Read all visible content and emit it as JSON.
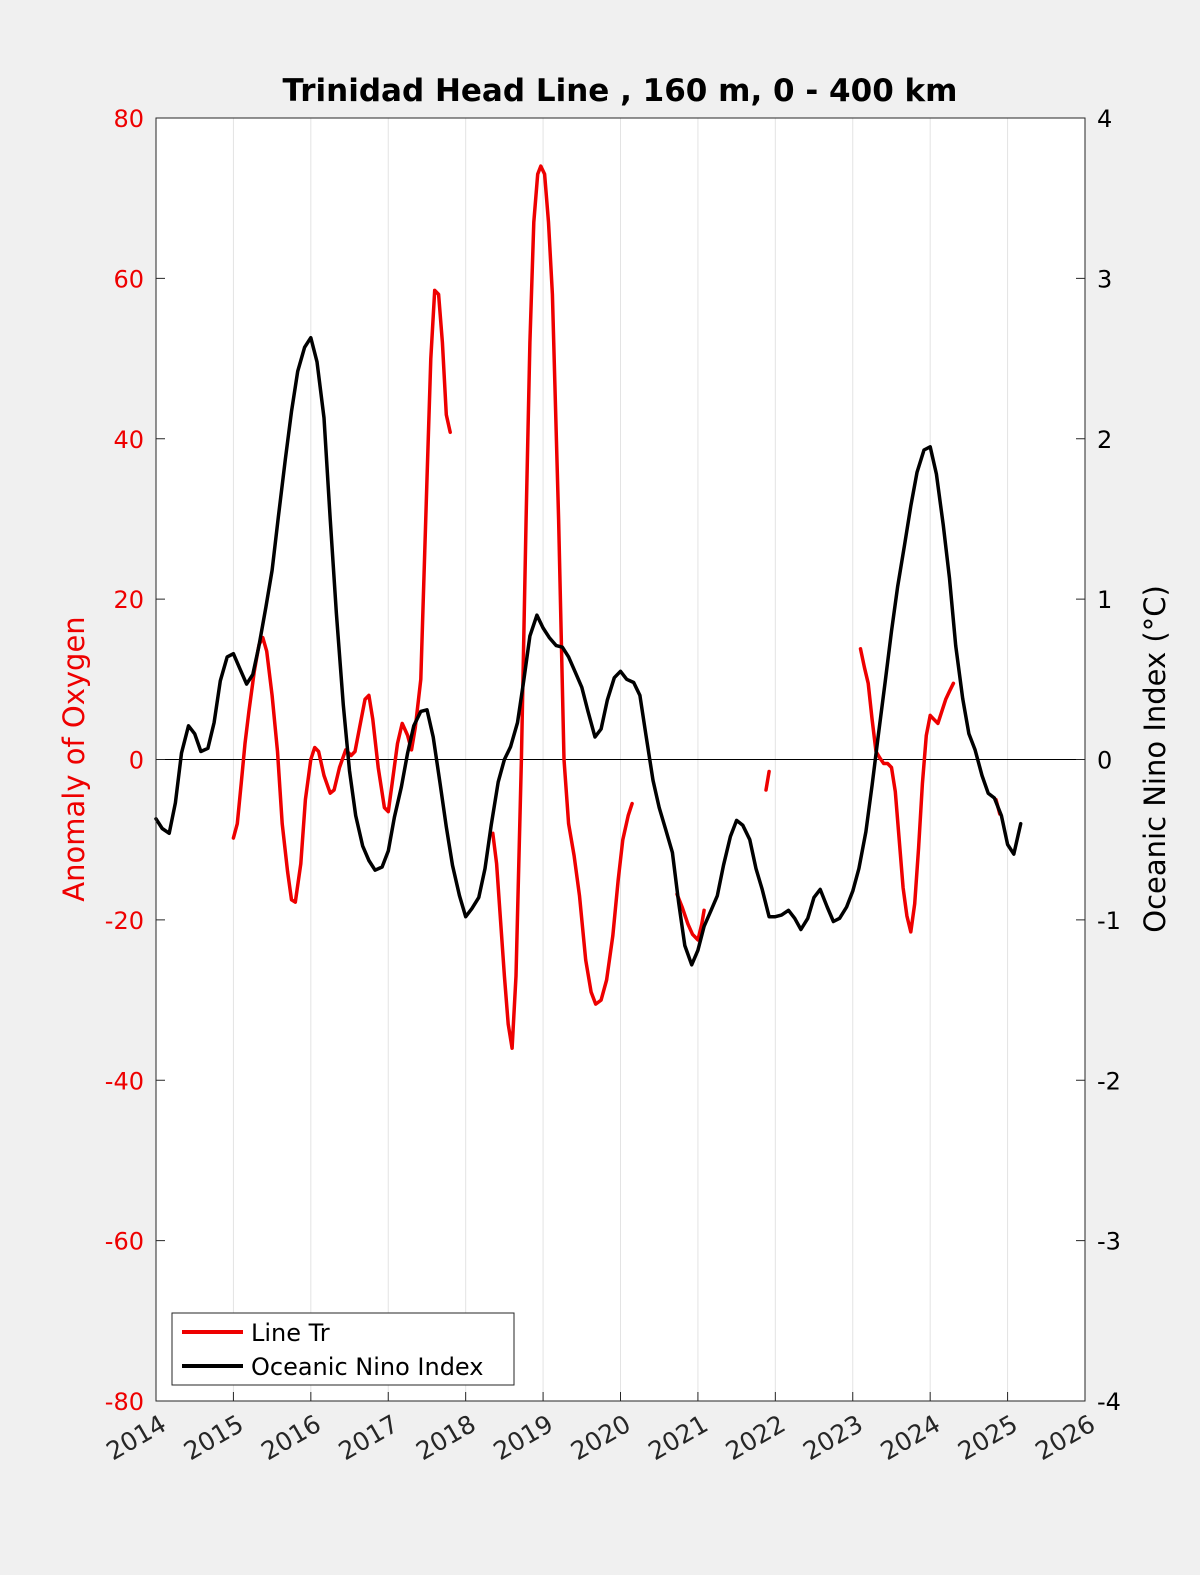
{
  "chart_data": {
    "type": "line",
    "title": "Trinidad Head Line , 160 m, 0 - 400 km",
    "ylabel_left": "Anomaly of Oxygen",
    "ylabel_right": "Oceanic Nino Index (°C)",
    "xlim": [
      2014,
      2026
    ],
    "ylim_left": [
      -80,
      80
    ],
    "ylim_right": [
      -4,
      4
    ],
    "x_ticks": [
      "2014",
      "2015",
      "2016",
      "2017",
      "2018",
      "2019",
      "2020",
      "2021",
      "2022",
      "2023",
      "2024",
      "2025",
      "2026"
    ],
    "y_ticks_left": [
      "80",
      "60",
      "40",
      "20",
      "0",
      "-20",
      "-40",
      "-60",
      "-80"
    ],
    "y_ticks_right": [
      "4",
      "3",
      "2",
      "1",
      "0",
      "-1",
      "-2",
      "-3",
      "-4"
    ],
    "grid": "vertical",
    "zero_line": true,
    "legend_position": "bottom-left",
    "colors": {
      "line_tr": "#ee0000",
      "oni": "#000000",
      "left_axis": "#ee0000"
    },
    "series": [
      {
        "name": "Line Tr",
        "axis": "left",
        "segments": [
          [
            [
              2015.0,
              -9.8
            ],
            [
              2015.05,
              -8
            ],
            [
              2015.1,
              -3
            ],
            [
              2015.15,
              2
            ],
            [
              2015.2,
              6
            ],
            [
              2015.27,
              11
            ],
            [
              2015.33,
              14.3
            ],
            [
              2015.38,
              15.2
            ],
            [
              2015.43,
              13.5
            ],
            [
              2015.5,
              8
            ],
            [
              2015.57,
              1
            ],
            [
              2015.63,
              -8
            ],
            [
              2015.7,
              -14
            ],
            [
              2015.75,
              -17.5
            ],
            [
              2015.8,
              -17.8
            ],
            [
              2015.87,
              -13
            ],
            [
              2015.93,
              -5
            ],
            [
              2016.0,
              0
            ],
            [
              2016.05,
              1.5
            ],
            [
              2016.1,
              1
            ],
            [
              2016.17,
              -2
            ],
            [
              2016.25,
              -4.2
            ],
            [
              2016.3,
              -3.8
            ],
            [
              2016.37,
              -1
            ],
            [
              2016.45,
              1.2
            ],
            [
              2016.52,
              0.5
            ],
            [
              2016.57,
              1
            ],
            [
              2016.63,
              4
            ],
            [
              2016.7,
              7.5
            ],
            [
              2016.75,
              8
            ],
            [
              2016.8,
              5
            ],
            [
              2016.87,
              -1
            ],
            [
              2016.95,
              -6
            ],
            [
              2017.0,
              -6.5
            ],
            [
              2017.05,
              -3
            ],
            [
              2017.12,
              2
            ],
            [
              2017.18,
              4.5
            ],
            [
              2017.25,
              3
            ],
            [
              2017.3,
              1.2
            ],
            [
              2017.35,
              4
            ],
            [
              2017.42,
              10
            ],
            [
              2017.5,
              35
            ],
            [
              2017.55,
              50
            ],
            [
              2017.6,
              58.5
            ],
            [
              2017.65,
              58
            ],
            [
              2017.7,
              52
            ],
            [
              2017.75,
              43
            ],
            [
              2017.8,
              40.8
            ]
          ],
          [
            [
              2018.35,
              -9.2
            ],
            [
              2018.4,
              -13
            ],
            [
              2018.45,
              -20
            ],
            [
              2018.5,
              -27
            ],
            [
              2018.55,
              -33
            ],
            [
              2018.6,
              -36
            ],
            [
              2018.65,
              -27
            ],
            [
              2018.72,
              0
            ],
            [
              2018.78,
              30
            ],
            [
              2018.83,
              52
            ],
            [
              2018.88,
              67
            ],
            [
              2018.93,
              73
            ],
            [
              2018.97,
              74
            ],
            [
              2019.02,
              73
            ],
            [
              2019.07,
              67
            ],
            [
              2019.12,
              58
            ],
            [
              2019.2,
              30
            ],
            [
              2019.27,
              0
            ],
            [
              2019.33,
              -8
            ],
            [
              2019.4,
              -12
            ],
            [
              2019.47,
              -17
            ],
            [
              2019.55,
              -25
            ],
            [
              2019.62,
              -29
            ],
            [
              2019.68,
              -30.5
            ],
            [
              2019.75,
              -30
            ],
            [
              2019.82,
              -27.5
            ],
            [
              2019.9,
              -22
            ],
            [
              2019.97,
              -15
            ],
            [
              2020.03,
              -10
            ],
            [
              2020.1,
              -7
            ],
            [
              2020.15,
              -5.5
            ]
          ],
          [
            [
              2020.73,
              -16.8
            ],
            [
              2020.8,
              -18.5
            ],
            [
              2020.87,
              -20.5
            ],
            [
              2020.93,
              -21.8
            ],
            [
              2021.0,
              -22.5
            ],
            [
              2021.05,
              -20.5
            ],
            [
              2021.08,
              -18.8
            ]
          ],
          [
            [
              2021.88,
              -3.8
            ],
            [
              2021.92,
              -1.5
            ]
          ],
          [
            [
              2023.1,
              13.8
            ],
            [
              2023.15,
              11.5
            ],
            [
              2023.2,
              9.5
            ],
            [
              2023.25,
              5
            ],
            [
              2023.3,
              1
            ],
            [
              2023.35,
              0.2
            ],
            [
              2023.4,
              -0.5
            ],
            [
              2023.45,
              -0.5
            ],
            [
              2023.5,
              -1
            ],
            [
              2023.55,
              -4
            ],
            [
              2023.6,
              -10
            ],
            [
              2023.65,
              -16
            ],
            [
              2023.7,
              -19.5
            ],
            [
              2023.75,
              -21.5
            ],
            [
              2023.8,
              -18
            ],
            [
              2023.85,
              -11
            ],
            [
              2023.9,
              -3
            ],
            [
              2023.95,
              3
            ],
            [
              2024.0,
              5.5
            ],
            [
              2024.05,
              5
            ],
            [
              2024.1,
              4.5
            ],
            [
              2024.15,
              6
            ],
            [
              2024.2,
              7.5
            ],
            [
              2024.25,
              8.5
            ],
            [
              2024.3,
              9.5
            ]
          ],
          [
            [
              2024.85,
              -5
            ],
            [
              2024.9,
              -6.8
            ]
          ]
        ]
      },
      {
        "name": "Oceanic Nino Index",
        "axis": "right",
        "segments": [
          [
            [
              2014.0,
              -0.37
            ],
            [
              2014.08,
              -0.43
            ],
            [
              2014.17,
              -0.46
            ],
            [
              2014.25,
              -0.27
            ],
            [
              2014.33,
              0.04
            ],
            [
              2014.42,
              0.21
            ],
            [
              2014.5,
              0.16
            ],
            [
              2014.58,
              0.05
            ],
            [
              2014.67,
              0.07
            ],
            [
              2014.75,
              0.23
            ],
            [
              2014.83,
              0.49
            ],
            [
              2014.92,
              0.64
            ],
            [
              2015.0,
              0.66
            ],
            [
              2015.08,
              0.57
            ],
            [
              2015.17,
              0.47
            ],
            [
              2015.25,
              0.53
            ],
            [
              2015.33,
              0.71
            ],
            [
              2015.42,
              0.95
            ],
            [
              2015.5,
              1.18
            ],
            [
              2015.58,
              1.51
            ],
            [
              2015.67,
              1.87
            ],
            [
              2015.75,
              2.17
            ],
            [
              2015.83,
              2.42
            ],
            [
              2015.92,
              2.57
            ],
            [
              2016.0,
              2.63
            ],
            [
              2016.08,
              2.48
            ],
            [
              2016.17,
              2.13
            ],
            [
              2016.25,
              1.5
            ],
            [
              2016.33,
              0.91
            ],
            [
              2016.42,
              0.34
            ],
            [
              2016.5,
              -0.07
            ],
            [
              2016.58,
              -0.35
            ],
            [
              2016.67,
              -0.54
            ],
            [
              2016.75,
              -0.63
            ],
            [
              2016.83,
              -0.69
            ],
            [
              2016.92,
              -0.67
            ],
            [
              2017.0,
              -0.57
            ],
            [
              2017.08,
              -0.36
            ],
            [
              2017.17,
              -0.17
            ],
            [
              2017.25,
              0.04
            ],
            [
              2017.33,
              0.21
            ],
            [
              2017.42,
              0.3
            ],
            [
              2017.5,
              0.31
            ],
            [
              2017.58,
              0.14
            ],
            [
              2017.67,
              -0.15
            ],
            [
              2017.75,
              -0.42
            ],
            [
              2017.83,
              -0.66
            ],
            [
              2017.92,
              -0.85
            ],
            [
              2018.0,
              -0.98
            ],
            [
              2018.08,
              -0.93
            ],
            [
              2018.17,
              -0.86
            ],
            [
              2018.25,
              -0.68
            ],
            [
              2018.33,
              -0.41
            ],
            [
              2018.42,
              -0.14
            ],
            [
              2018.5,
              0.0
            ],
            [
              2018.58,
              0.08
            ],
            [
              2018.67,
              0.23
            ],
            [
              2018.75,
              0.49
            ],
            [
              2018.83,
              0.77
            ],
            [
              2018.92,
              0.9
            ],
            [
              2019.0,
              0.82
            ],
            [
              2019.08,
              0.76
            ],
            [
              2019.17,
              0.71
            ],
            [
              2019.25,
              0.7
            ],
            [
              2019.33,
              0.64
            ],
            [
              2019.42,
              0.54
            ],
            [
              2019.5,
              0.45
            ],
            [
              2019.58,
              0.3
            ],
            [
              2019.67,
              0.14
            ],
            [
              2019.75,
              0.19
            ],
            [
              2019.83,
              0.37
            ],
            [
              2019.92,
              0.51
            ],
            [
              2020.0,
              0.55
            ],
            [
              2020.08,
              0.5
            ],
            [
              2020.17,
              0.48
            ],
            [
              2020.25,
              0.4
            ],
            [
              2020.33,
              0.15
            ],
            [
              2020.42,
              -0.13
            ],
            [
              2020.5,
              -0.3
            ],
            [
              2020.58,
              -0.43
            ],
            [
              2020.67,
              -0.58
            ],
            [
              2020.75,
              -0.89
            ],
            [
              2020.83,
              -1.16
            ],
            [
              2020.92,
              -1.28
            ],
            [
              2021.0,
              -1.19
            ],
            [
              2021.08,
              -1.04
            ],
            [
              2021.17,
              -0.94
            ],
            [
              2021.25,
              -0.85
            ],
            [
              2021.33,
              -0.66
            ],
            [
              2021.42,
              -0.48
            ],
            [
              2021.5,
              -0.38
            ],
            [
              2021.58,
              -0.41
            ],
            [
              2021.67,
              -0.5
            ],
            [
              2021.75,
              -0.68
            ],
            [
              2021.83,
              -0.81
            ],
            [
              2021.92,
              -0.98
            ],
            [
              2022.0,
              -0.98
            ],
            [
              2022.08,
              -0.97
            ],
            [
              2022.17,
              -0.94
            ],
            [
              2022.25,
              -0.99
            ],
            [
              2022.33,
              -1.06
            ],
            [
              2022.42,
              -0.99
            ],
            [
              2022.5,
              -0.86
            ],
            [
              2022.58,
              -0.81
            ],
            [
              2022.67,
              -0.92
            ],
            [
              2022.75,
              -1.01
            ],
            [
              2022.83,
              -0.99
            ],
            [
              2022.92,
              -0.92
            ],
            [
              2023.0,
              -0.82
            ],
            [
              2023.08,
              -0.68
            ],
            [
              2023.17,
              -0.45
            ],
            [
              2023.25,
              -0.16
            ],
            [
              2023.33,
              0.15
            ],
            [
              2023.42,
              0.49
            ],
            [
              2023.5,
              0.8
            ],
            [
              2023.58,
              1.08
            ],
            [
              2023.67,
              1.34
            ],
            [
              2023.75,
              1.58
            ],
            [
              2023.83,
              1.79
            ],
            [
              2023.92,
              1.93
            ],
            [
              2024.0,
              1.95
            ],
            [
              2024.08,
              1.78
            ],
            [
              2024.17,
              1.46
            ],
            [
              2024.25,
              1.13
            ],
            [
              2024.33,
              0.71
            ],
            [
              2024.42,
              0.38
            ],
            [
              2024.5,
              0.16
            ],
            [
              2024.58,
              0.06
            ],
            [
              2024.67,
              -0.1
            ],
            [
              2024.75,
              -0.21
            ],
            [
              2024.83,
              -0.24
            ],
            [
              2024.92,
              -0.35
            ],
            [
              2025.0,
              -0.53
            ],
            [
              2025.08,
              -0.59
            ],
            [
              2025.17,
              -0.4
            ]
          ]
        ]
      }
    ]
  }
}
